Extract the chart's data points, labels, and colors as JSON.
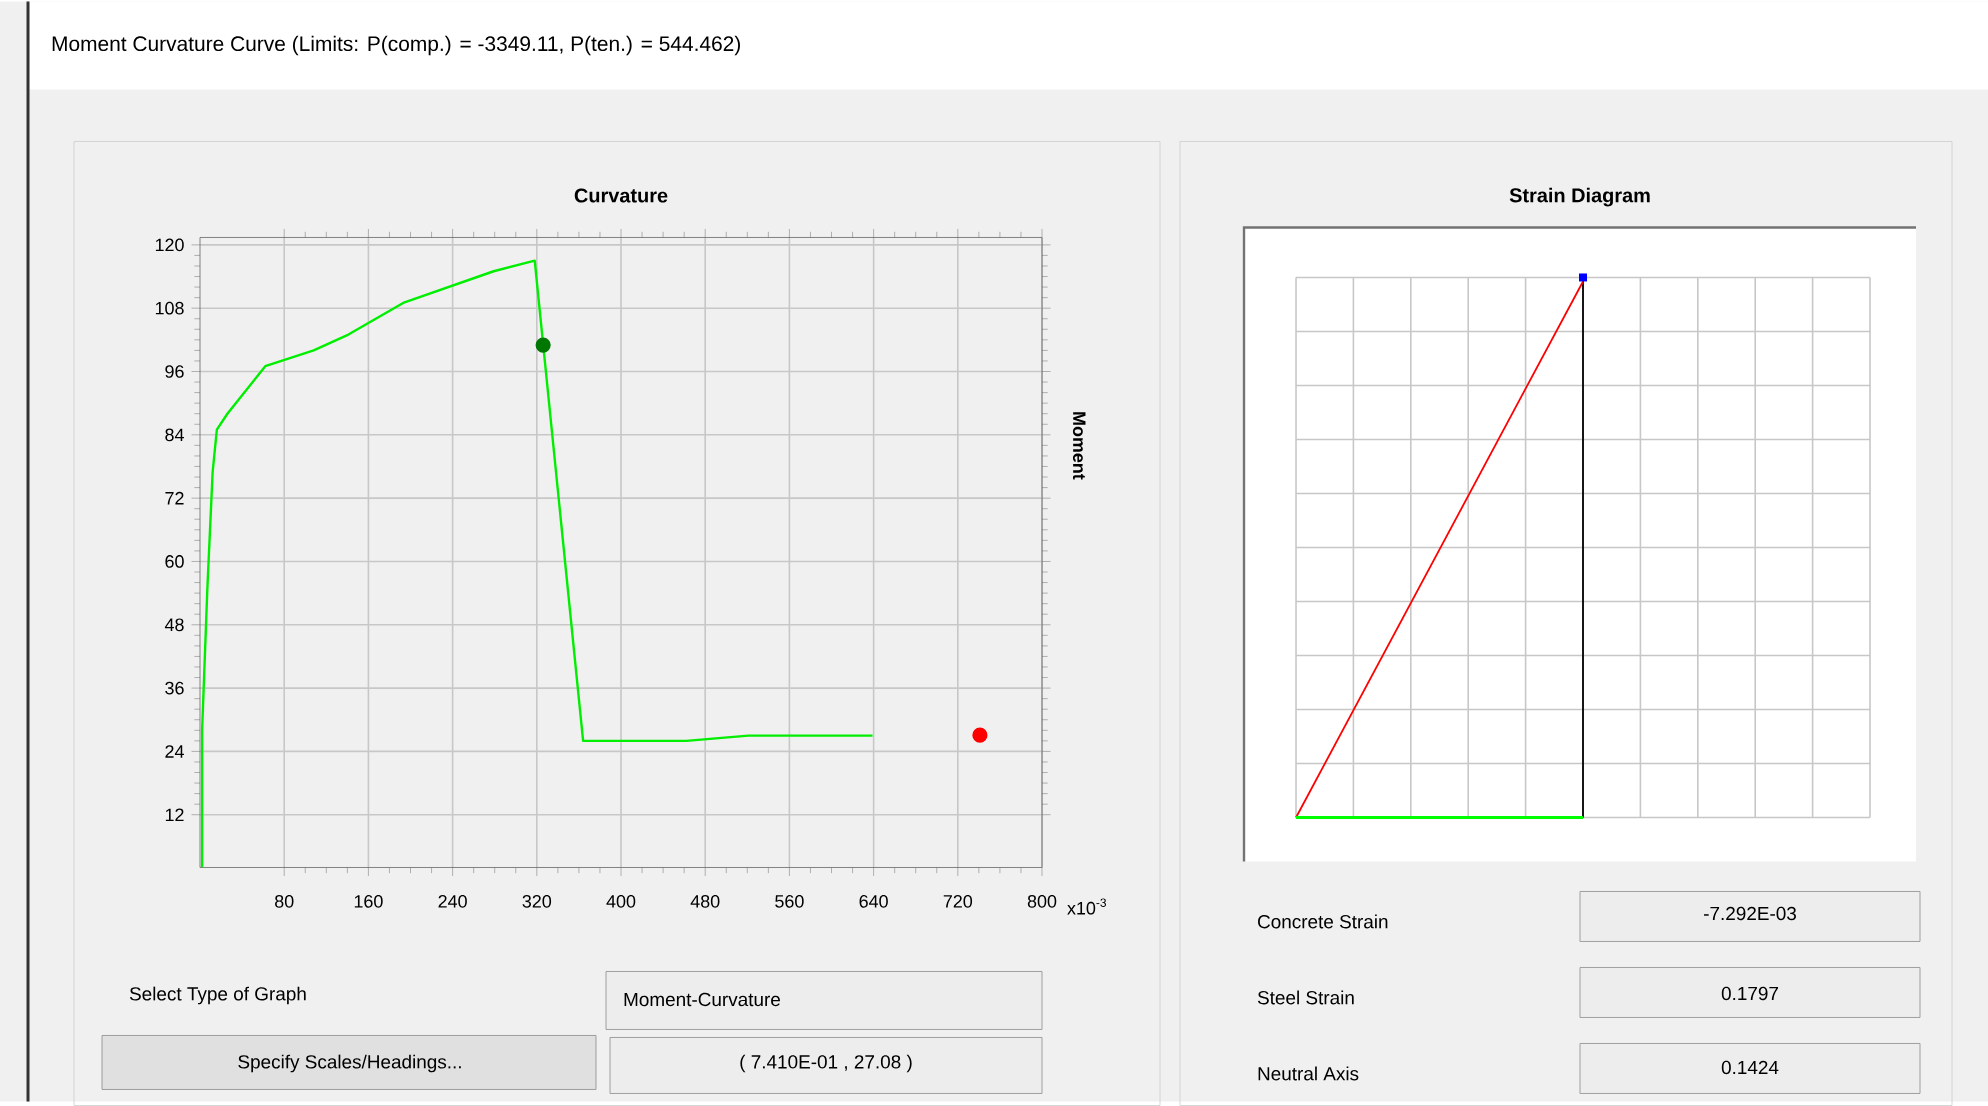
{
  "chart_data": [
    {
      "type": "line",
      "title": "Curvature",
      "ylabel": "Moment",
      "xlabel": "x10$^{-3}$",
      "xlim": [
        0,
        800
      ],
      "xticks": [
        80,
        160,
        240,
        320,
        400,
        480,
        560,
        640,
        720,
        800
      ],
      "ylim": [
        2,
        121.4
      ],
      "yticks": [
        12,
        24,
        36,
        48,
        60,
        72,
        84,
        96,
        108,
        120
      ],
      "grid": true,
      "series": [
        {
          "type": "line",
          "color": "#00ee00",
          "marker": "none",
          "x": [
            2,
            2,
            7,
            12,
            16,
            26,
            62,
            108,
            141,
            193,
            279,
            318,
            364,
            410,
            462,
            521,
            639
          ],
          "values": [
            2,
            28,
            55,
            77,
            85,
            88,
            97,
            100,
            103,
            109,
            115,
            117,
            26,
            26,
            26,
            27,
            27
          ]
        },
        {
          "type": "scatter",
          "color": "#007700",
          "marker": "circle",
          "x": [
            326
          ],
          "values": [
            101
          ]
        },
        {
          "type": "scatter",
          "color": "#ff0000",
          "marker": "circle",
          "x": [
            741
          ],
          "values": [
            27.08
          ]
        }
      ]
    },
    {
      "type": "other",
      "title": "Strain Diagram"
    },
    {
      "type": "other",
      "title": "Moment Curvature Curve (Limits:  P(comp.) = -3349.11, P(ten.) = 544.462)",
      "annotations": [
        "Select Type of Graph",
        "Moment-Curvature",
        "Specify Scales/Headings...",
        "( 7.410E-01 , 27.08 )",
        "Concrete Strain",
        "-7.292E-03",
        "Steel Strain",
        "0.1797",
        "Neutral Axis",
        "0.1424"
      ]
    }
  ]
}
